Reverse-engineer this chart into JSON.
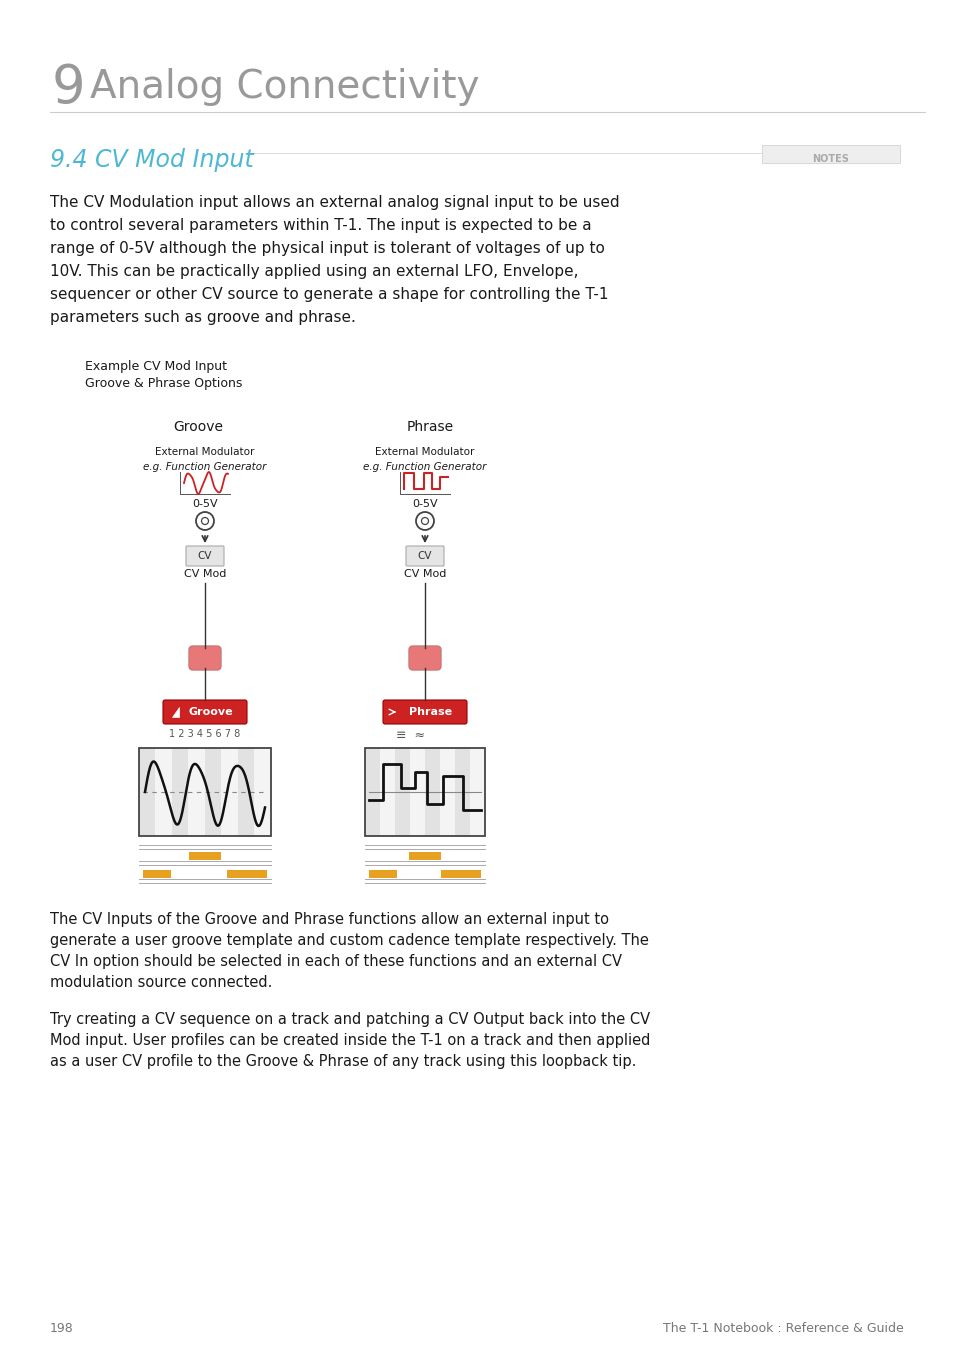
{
  "page_title_number": "9",
  "page_title_text": "Analog Connectivity",
  "section_title": "9.4 CV Mod Input",
  "notes_label": "NOTES",
  "body_text": "The CV Modulation input allows an external analog signal input to be used\nto control several parameters within T-1. The input is expected to be a\nrange of 0-5V although the physical input is tolerant of voltages of up to\n10V. This can be practically applied using an external LFO, Envelope,\nsequencer or other CV source to generate a shape for controlling the T-1\nparameters such as groove and phrase.",
  "example_label1": "Example CV Mod Input",
  "example_label2": "Groove & Phrase Options",
  "groove_label": "Groove",
  "phrase_label": "Phrase",
  "ext_mod_label": "External Modulator",
  "eg_label": "e.g. Function Generator",
  "voltage_label": "0-5V",
  "cv_box_label": "CV",
  "cv_mod_label": "CV Mod",
  "groove_button_text": "Groove",
  "phrase_button_text": "Phrase",
  "seq_numbers": "1 2 3 4 5 6 7 8",
  "bottom_text1": "The CV Inputs of the Groove and Phrase functions allow an external input to\ngenerate a user groove template and custom cadence template respectively. The\nCV In option should be selected in each of these functions and an external CV\nmodulation source connected.",
  "bottom_text2": "Try creating a CV sequence on a track and patching a CV Output back into the CV\nMod input. User profiles can be created inside the T-1 on a track and then applied\nas a user CV profile to the Groove & Phrase of any track using this loopback tip.",
  "footer_page": "198",
  "footer_right": "The T-1 Notebook : Reference & Guide",
  "bg_color": "#ffffff",
  "title_color": "#999999",
  "section_color": "#4db8d4",
  "text_color": "#1a1a1a",
  "notes_color": "#bbbbbb",
  "red_button_color": "#cc2222",
  "pink_knob_color": "#e87878",
  "orange_accent": "#e8a020",
  "cv_box_bg": "#e8e8e8"
}
